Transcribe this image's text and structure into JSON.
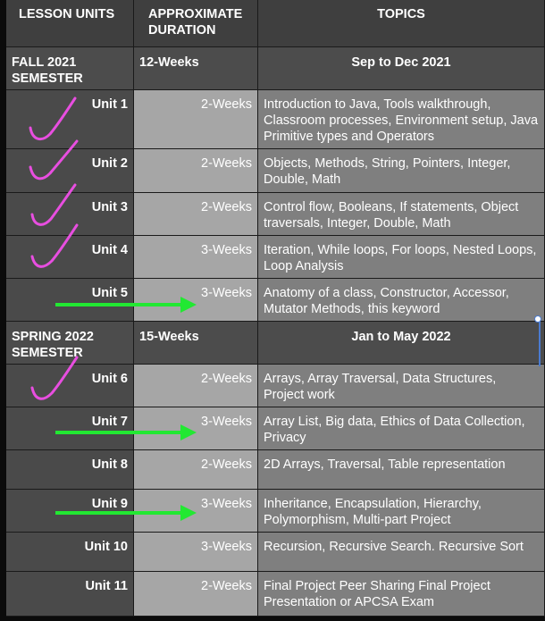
{
  "header": {
    "col1": "LESSON UNITS",
    "col2_line1": "APPROXIMATE",
    "col2_line2": "DURATION",
    "col3": "TOPICS"
  },
  "semesters": [
    {
      "name_line1": "FALL 2021",
      "name_line2": "SEMESTER",
      "duration": "12-Weeks",
      "dates": "Sep to Dec 2021"
    },
    {
      "name_line1": "SPRING 2022",
      "name_line2": "SEMESTER",
      "duration": "15-Weeks",
      "dates": "Jan to May 2022"
    }
  ],
  "units": [
    {
      "unit": "Unit 1",
      "duration": "2-Weeks",
      "topics": "Introduction to Java, Tools walkthrough, Classroom processes, Environment setup, Java Primitive types and Operators",
      "mark": "check"
    },
    {
      "unit": "Unit 2",
      "duration": "2-Weeks",
      "topics": "Objects, Methods, String, Pointers, Integer, Double, Math",
      "mark": "check"
    },
    {
      "unit": "Unit 3",
      "duration": "2-Weeks",
      "topics": "Control flow, Booleans, If statements, Object traversals, Integer, Double, Math",
      "mark": "check"
    },
    {
      "unit": "Unit 4",
      "duration": "3-Weeks",
      "topics": "Iteration, While loops, For loops, Nested Loops, Loop Analysis",
      "mark": "check"
    },
    {
      "unit": "Unit 5",
      "duration": "3-Weeks",
      "topics": "Anatomy of a class, Constructor, Accessor, Mutator Methods, this keyword",
      "mark": "arrow"
    },
    {
      "unit": "Unit 6",
      "duration": "2-Weeks",
      "topics": "Arrays, Array Traversal, Data Structures, Project work",
      "mark": "check"
    },
    {
      "unit": "Unit 7",
      "duration": "3-Weeks",
      "topics": "Array List, Big data, Ethics of Data Collection, Privacy",
      "mark": "arrow"
    },
    {
      "unit": "Unit 8",
      "duration": "2-Weeks",
      "topics": "2D Arrays, Traversal, Table representation",
      "mark": "none"
    },
    {
      "unit": "Unit 9",
      "duration": "3-Weeks",
      "topics": "Inheritance, Encapsulation, Hierarchy, Polymorphism, Multi-part Project",
      "mark": "arrow"
    },
    {
      "unit": "Unit 10",
      "duration": "3-Weeks",
      "topics": "Recursion, Recursive Search. Recursive Sort",
      "mark": "none"
    },
    {
      "unit": "Unit 11",
      "duration": "2-Weeks",
      "topics": "Final Project Peer Sharing Final Project Presentation or APCSA Exam",
      "mark": "none"
    }
  ],
  "colors": {
    "check": "#e84ee0",
    "arrow": "#22e832"
  }
}
